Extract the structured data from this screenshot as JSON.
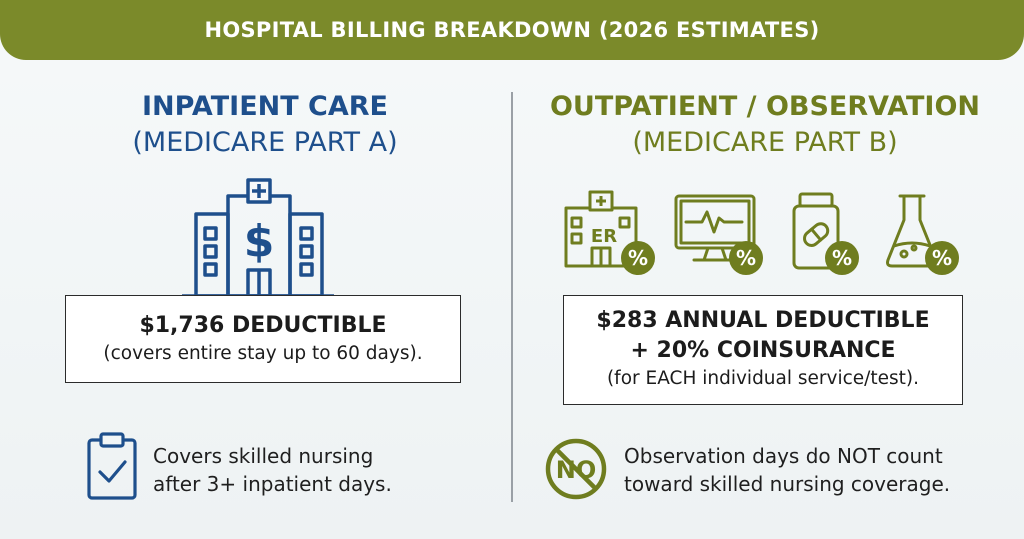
{
  "banner": {
    "title": "HOSPITAL BILLING BREAKDOWN (2026 ESTIMATES)"
  },
  "left": {
    "title": "INPATIENT CARE",
    "subtitle": "(MEDICARE PART A)",
    "icon": "hospital-dollar-icon",
    "box_line1": "$1,736 DEDUCTIBLE",
    "box_line2": "(covers entire stay up to 60 days).",
    "note_icon": "clipboard-check-icon",
    "note_line1": "Covers skilled nursing",
    "note_line2": "after 3+ inpatient days."
  },
  "right": {
    "title": "OUTPATIENT / OBSERVATION",
    "subtitle": "(MEDICARE PART B)",
    "icons": [
      "er-building-percent-icon",
      "monitor-percent-icon",
      "pill-bottle-percent-icon",
      "lab-flask-percent-icon"
    ],
    "er_label": "ER",
    "percent_symbol": "%",
    "box_line1": "$283 ANNUAL DEDUCTIBLE",
    "box_line2": "+ 20% COINSURANCE",
    "box_line3": "(for EACH individual service/test).",
    "no_label": "NO",
    "note_line1": "Observation days do NOT count",
    "note_line2": "toward skilled nursing coverage."
  },
  "colors": {
    "banner": "#7b8a2a",
    "blue": "#1e4f8c",
    "olive": "#6f7d1f"
  }
}
